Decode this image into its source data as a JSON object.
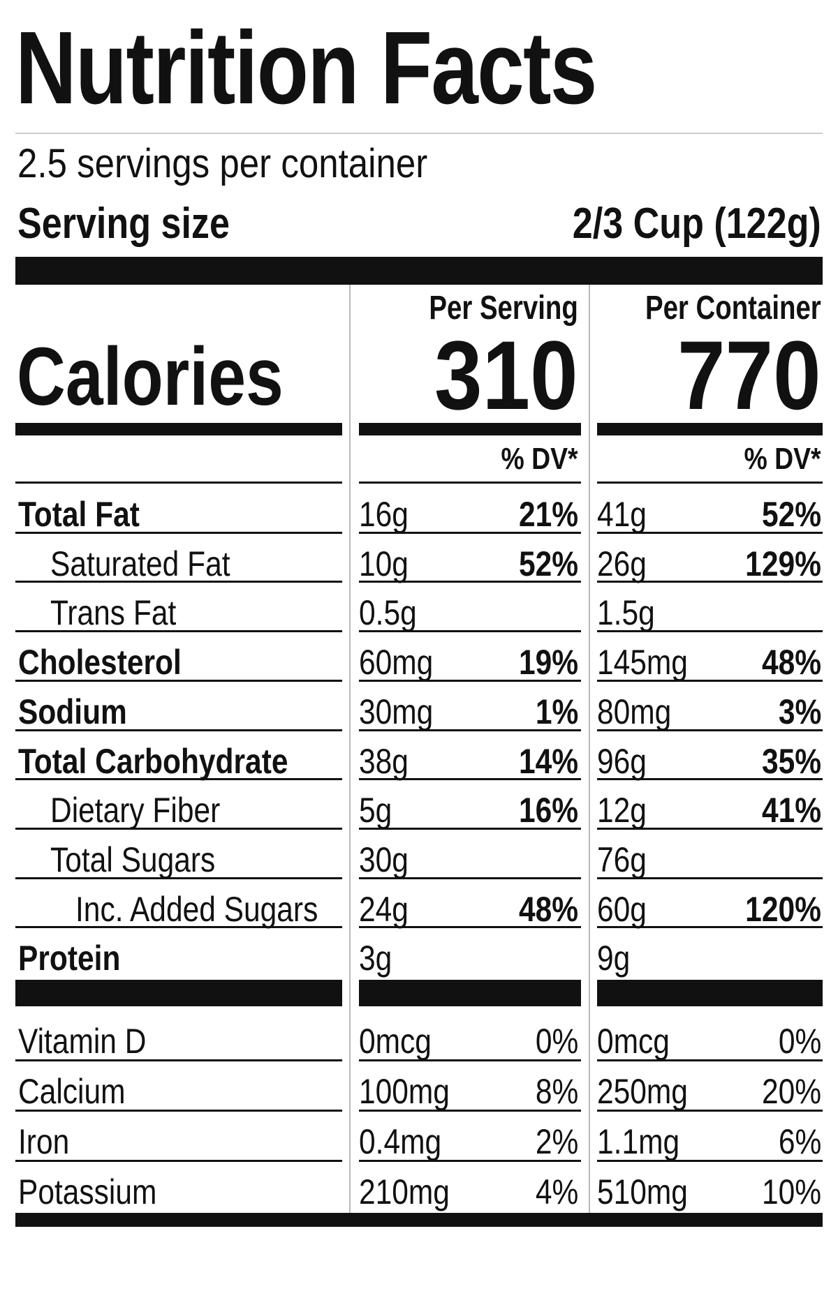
{
  "title": "Nutrition Facts",
  "servings_per_container": "2.5 servings per container",
  "serving_size": {
    "label": "Serving size",
    "value": "2/3 Cup (122g)"
  },
  "columns": {
    "per_serving": "Per Serving",
    "per_container": "Per Container"
  },
  "calories": {
    "label": "Calories",
    "per_serving": "310",
    "per_container": "770"
  },
  "dv_header": "% DV*",
  "nutrients": [
    {
      "label": "Total Fat",
      "bold": true,
      "indent": 0,
      "serving_amount": "16g",
      "serving_dv": "21%",
      "container_amount": "41g",
      "container_dv": "52%"
    },
    {
      "label": "Saturated Fat",
      "bold": false,
      "indent": 1,
      "serving_amount": "10g",
      "serving_dv": "52%",
      "container_amount": "26g",
      "container_dv": "129%"
    },
    {
      "label": "Trans Fat",
      "bold": false,
      "indent": 1,
      "serving_amount": "0.5g",
      "serving_dv": "",
      "container_amount": "1.5g",
      "container_dv": ""
    },
    {
      "label": "Cholesterol",
      "bold": true,
      "indent": 0,
      "serving_amount": "60mg",
      "serving_dv": "19%",
      "container_amount": "145mg",
      "container_dv": "48%"
    },
    {
      "label": "Sodium",
      "bold": true,
      "indent": 0,
      "serving_amount": "30mg",
      "serving_dv": "1%",
      "container_amount": "80mg",
      "container_dv": "3%"
    },
    {
      "label": "Total Carbohydrate",
      "bold": true,
      "indent": 0,
      "serving_amount": "38g",
      "serving_dv": "14%",
      "container_amount": "96g",
      "container_dv": "35%"
    },
    {
      "label": "Dietary Fiber",
      "bold": false,
      "indent": 1,
      "serving_amount": "5g",
      "serving_dv": "16%",
      "container_amount": "12g",
      "container_dv": "41%"
    },
    {
      "label": "Total Sugars",
      "bold": false,
      "indent": 1,
      "serving_amount": "30g",
      "serving_dv": "",
      "container_amount": "76g",
      "container_dv": ""
    },
    {
      "label": "Inc. Added Sugars",
      "bold": false,
      "indent": 2,
      "serving_amount": "24g",
      "serving_dv": "48%",
      "container_amount": "60g",
      "container_dv": "120%"
    },
    {
      "label": "Protein",
      "bold": true,
      "indent": 0,
      "serving_amount": "3g",
      "serving_dv": "",
      "container_amount": "9g",
      "container_dv": ""
    }
  ],
  "vitamins": [
    {
      "label": "Vitamin D",
      "serving_amount": "0mcg",
      "serving_dv": "0%",
      "container_amount": "0mcg",
      "container_dv": "0%"
    },
    {
      "label": "Calcium",
      "serving_amount": "100mg",
      "serving_dv": "8%",
      "container_amount": "250mg",
      "container_dv": "20%"
    },
    {
      "label": "Iron",
      "serving_amount": "0.4mg",
      "serving_dv": "2%",
      "container_amount": "1.1mg",
      "container_dv": "6%"
    },
    {
      "label": "Potassium",
      "serving_amount": "210mg",
      "serving_dv": "4%",
      "container_amount": "510mg",
      "container_dv": "10%"
    }
  ]
}
